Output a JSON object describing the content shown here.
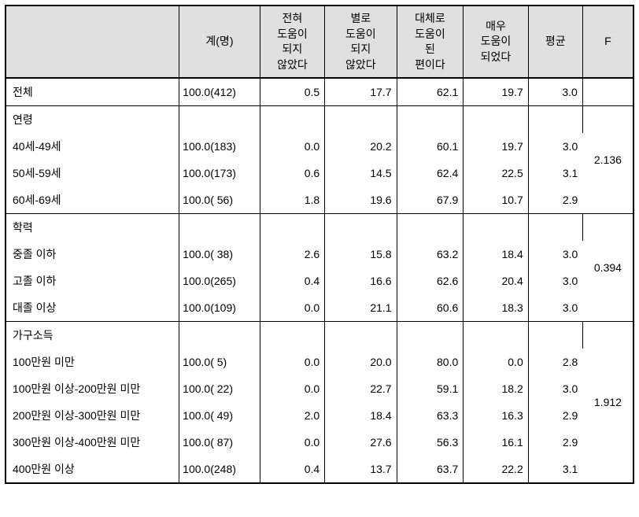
{
  "header": {
    "blank": "",
    "count": "계(명)",
    "v1": "전혀\n도움이\n되지\n않았다",
    "v2": "별로\n도움이\n되지\n않았다",
    "v3": "대체로\n도움이\n된\n편이다",
    "v4": "매우\n도움이\n되었다",
    "avg": "평균",
    "f": "F"
  },
  "total": {
    "label": "전체",
    "count": "100.0(412)",
    "v1": "0.5",
    "v2": "17.7",
    "v3": "62.1",
    "v4": "19.7",
    "avg": "3.0",
    "f": ""
  },
  "sections": [
    {
      "title": "연령",
      "f": "2.136",
      "rows": [
        {
          "label": "40세-49세",
          "count": "100.0(183)",
          "v1": "0.0",
          "v2": "20.2",
          "v3": "60.1",
          "v4": "19.7",
          "avg": "3.0"
        },
        {
          "label": "50세-59세",
          "count": "100.0(173)",
          "v1": "0.6",
          "v2": "14.5",
          "v3": "62.4",
          "v4": "22.5",
          "avg": "3.1"
        },
        {
          "label": "60세-69세",
          "count": "100.0( 56)",
          "v1": "1.8",
          "v2": "19.6",
          "v3": "67.9",
          "v4": "10.7",
          "avg": "2.9"
        }
      ]
    },
    {
      "title": "학력",
      "f": "0.394",
      "rows": [
        {
          "label": "중졸 이하",
          "count": "100.0( 38)",
          "v1": "2.6",
          "v2": "15.8",
          "v3": "63.2",
          "v4": "18.4",
          "avg": "3.0"
        },
        {
          "label": "고졸 이하",
          "count": "100.0(265)",
          "v1": "0.4",
          "v2": "16.6",
          "v3": "62.6",
          "v4": "20.4",
          "avg": "3.0"
        },
        {
          "label": "대졸 이상",
          "count": "100.0(109)",
          "v1": "0.0",
          "v2": "21.1",
          "v3": "60.6",
          "v4": "18.3",
          "avg": "3.0"
        }
      ]
    },
    {
      "title": "가구소득",
      "f": "1.912",
      "rows": [
        {
          "label": "100만원 미만",
          "count": "100.0(  5)",
          "v1": "0.0",
          "v2": "20.0",
          "v3": "80.0",
          "v4": "0.0",
          "avg": "2.8"
        },
        {
          "label": "100만원 이상-200만원 미만",
          "count": "100.0( 22)",
          "v1": "0.0",
          "v2": "22.7",
          "v3": "59.1",
          "v4": "18.2",
          "avg": "3.0"
        },
        {
          "label": "200만원 이상-300만원 미만",
          "count": "100.0( 49)",
          "v1": "2.0",
          "v2": "18.4",
          "v3": "63.3",
          "v4": "16.3",
          "avg": "2.9"
        },
        {
          "label": "300만원 이상-400만원 미만",
          "count": "100.0( 87)",
          "v1": "0.0",
          "v2": "27.6",
          "v3": "56.3",
          "v4": "16.1",
          "avg": "2.9"
        },
        {
          "label": "400만원 이상",
          "count": "100.0(248)",
          "v1": "0.4",
          "v2": "13.7",
          "v3": "63.7",
          "v4": "22.2",
          "avg": "3.1"
        }
      ]
    }
  ]
}
